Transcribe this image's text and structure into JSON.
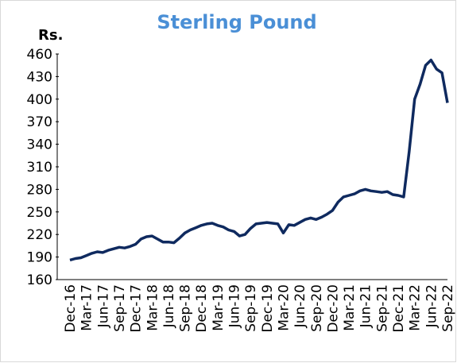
{
  "chart_data": {
    "type": "line",
    "title": "Sterling Pound",
    "y_label": "Rs.",
    "categories": [
      "Dec-16",
      null,
      null,
      "Mar-17",
      null,
      null,
      "Jun-17",
      null,
      null,
      "Sep-17",
      null,
      null,
      "Dec-17",
      null,
      null,
      "Mar-18",
      null,
      null,
      "Jun-18",
      null,
      null,
      "Sep-18",
      null,
      null,
      "Dec-18",
      null,
      null,
      "Mar-19",
      null,
      null,
      "Jun-19",
      null,
      null,
      "Sep-19",
      null,
      null,
      "Dec-19",
      null,
      null,
      "Mar-20",
      null,
      null,
      "Jun-20",
      null,
      null,
      "Sep-20",
      null,
      null,
      "Dec-20",
      null,
      null,
      "Mar-21",
      null,
      null,
      "Jun-21",
      null,
      null,
      "Sep-21",
      null,
      null,
      "Dec-21",
      null,
      null,
      "Mar-22",
      null,
      null,
      "Jun-22",
      null,
      null,
      "Sep-22"
    ],
    "series": [
      {
        "name": "Sterling Pound",
        "color": "#0f2a5f",
        "values": [
          186,
          188,
          189,
          192,
          195,
          197,
          196,
          199,
          201,
          203,
          202,
          204,
          207,
          214,
          217,
          218,
          214,
          210,
          210,
          209,
          215,
          222,
          226,
          229,
          232,
          234,
          235,
          232,
          230,
          226,
          224,
          218,
          220,
          228,
          234,
          235,
          236,
          235,
          234,
          222,
          233,
          232,
          236,
          240,
          242,
          240,
          243,
          247,
          252,
          263,
          270,
          272,
          274,
          278,
          280,
          278,
          277,
          276,
          277,
          273,
          272,
          270,
          330,
          400,
          420,
          445,
          452,
          440,
          435,
          395
        ]
      }
    ],
    "ylim": [
      160,
      460
    ],
    "yticks": [
      160,
      190,
      220,
      250,
      280,
      310,
      340,
      370,
      400,
      430,
      460
    ]
  }
}
